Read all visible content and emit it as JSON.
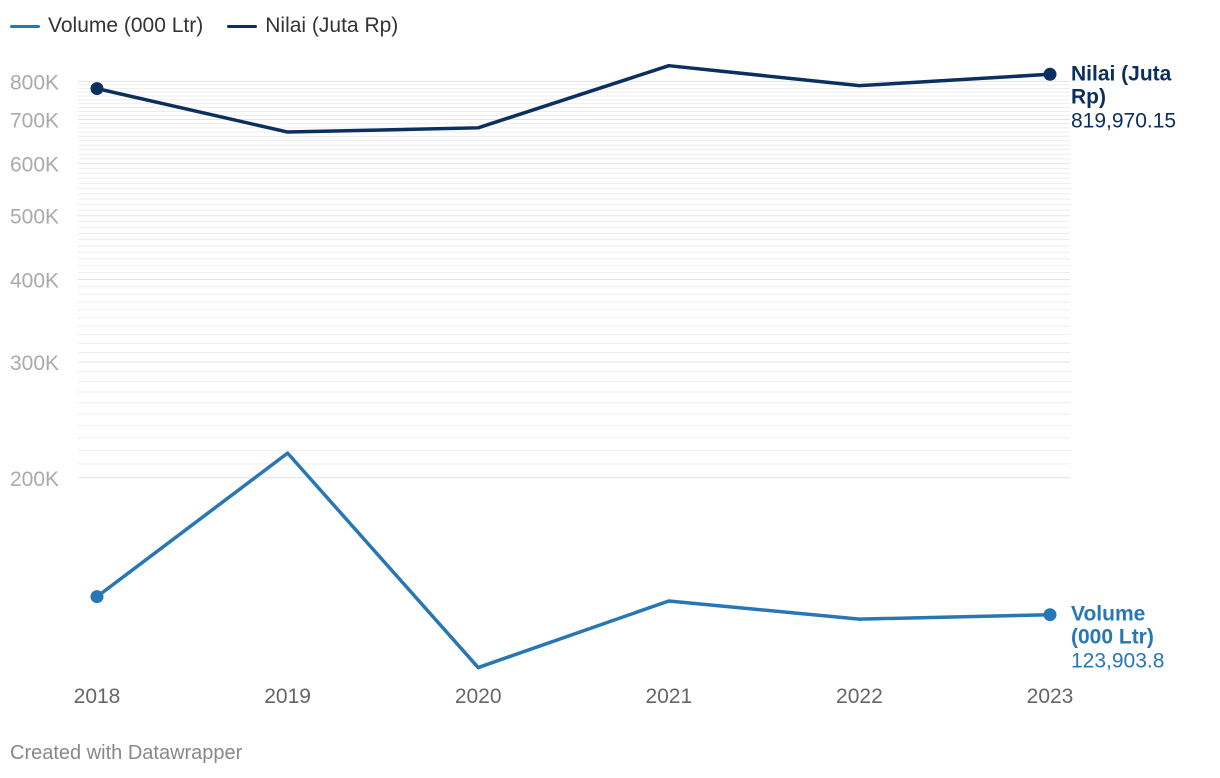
{
  "chart_data": {
    "type": "line",
    "y_scale": "log",
    "x": [
      "2018",
      "2019",
      "2020",
      "2021",
      "2022",
      "2023"
    ],
    "series": [
      {
        "name": "Volume (000 Ltr)",
        "color": "#2777b4",
        "values": [
          132000,
          218000,
          103000,
          130000,
          122000,
          123903.8
        ],
        "end_label_lines": [
          "Volume",
          "(000 Ltr)"
        ],
        "end_value_label": "123,903.8"
      },
      {
        "name": "Nilai (Juta Rp)",
        "color": "#0b3060",
        "values": [
          780000,
          670000,
          680000,
          845000,
          788000,
          819970.15
        ],
        "end_label_lines": [
          "Nilai (Juta",
          "Rp)"
        ],
        "end_value_label": "819,970.15"
      }
    ],
    "yticks": [
      {
        "value": 800000,
        "label": "800K"
      },
      {
        "value": 700000,
        "label": "700K"
      },
      {
        "value": 600000,
        "label": "600K"
      },
      {
        "value": 500000,
        "label": "500K"
      },
      {
        "value": 400000,
        "label": "400K"
      },
      {
        "value": 300000,
        "label": "300K"
      },
      {
        "value": 200000,
        "label": "200K"
      }
    ],
    "ylim": [
      100000,
      850000
    ],
    "grid": true,
    "legend_position": "top-left"
  },
  "footer": "Created with Datawrapper"
}
